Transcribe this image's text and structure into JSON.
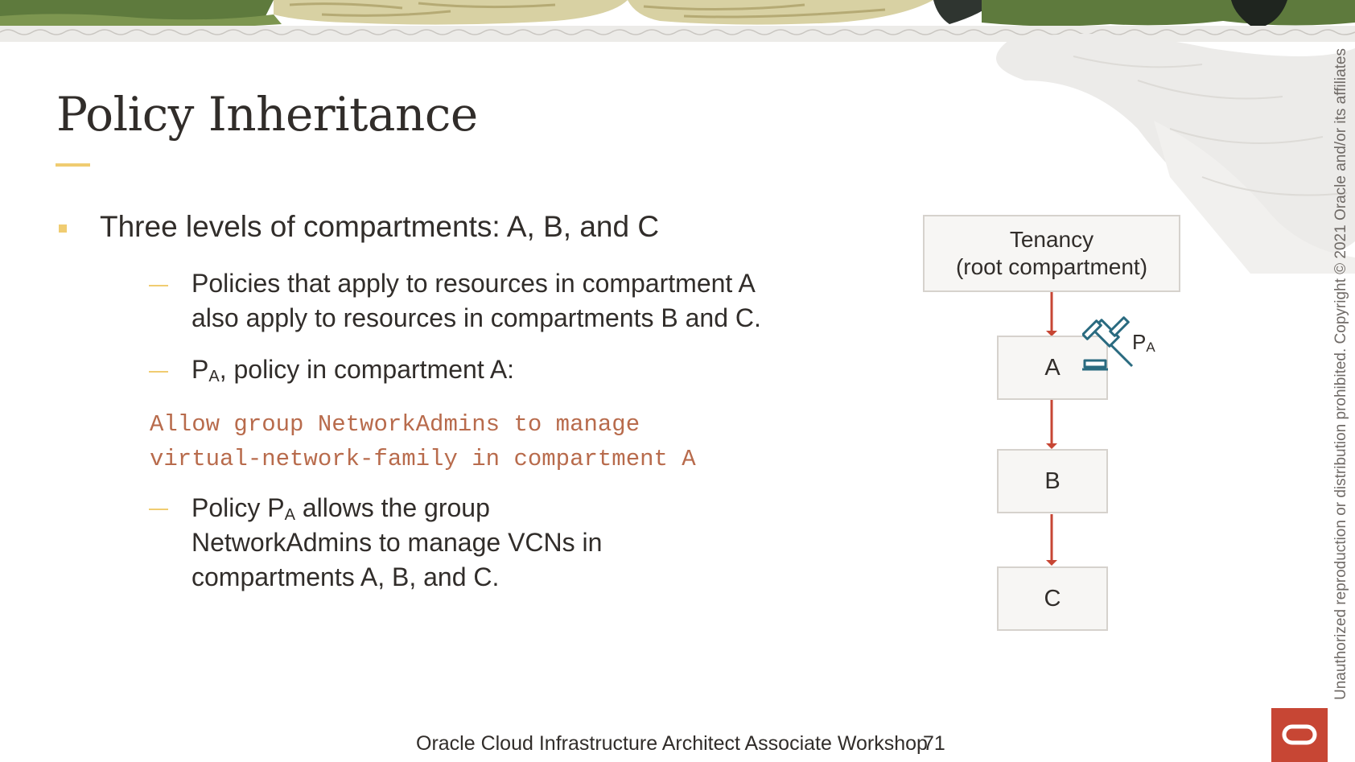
{
  "slide": {
    "title": "Policy Inheritance",
    "bullets": {
      "main": "Three levels of compartments: A, B, and C",
      "sub1_line1": "Policies that apply to resources in compartment A",
      "sub1_line2": "also apply to resources in compartments B and C.",
      "sub2_p": "P",
      "sub2_sub": "A",
      "sub2_rest": ", policy in compartment A:",
      "code_line1": "Allow group NetworkAdmins to manage",
      "code_line2": "virtual-network-family in compartment A",
      "sub3_pre": "Policy P",
      "sub3_sub": "A",
      "sub3_rest": " allows the group",
      "sub3_line2": "NetworkAdmins to manage VCNs in",
      "sub3_line3": "compartments A, B, and C."
    }
  },
  "diagram": {
    "root_line1": "Tenancy",
    "root_line2": "(root compartment)",
    "box_a": "A",
    "box_b": "B",
    "box_c": "C",
    "policy_p": "P",
    "policy_sub": "A",
    "gavel_icon": "gavel-icon",
    "arrow_color": "#c74634"
  },
  "side_copyright": "Unauthorized reproduction or distribution prohibited. Copyright © 2021 Oracle and/or its affiliates",
  "footer": {
    "text": "Oracle Cloud Infrastructure Architect Associate Workshop",
    "page": "71"
  },
  "logo": "oracle-logo-icon",
  "colors": {
    "accent_yellow": "#f0cc71",
    "code_color": "#b86b4c",
    "oracle_red": "#c74634",
    "text": "#312d2a"
  }
}
